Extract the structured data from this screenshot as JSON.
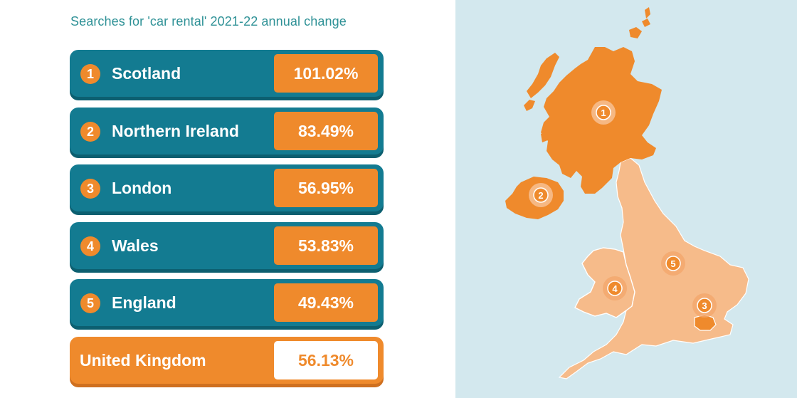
{
  "title": "Searches for 'car rental' 2021-22 annual change",
  "rows": [
    {
      "rank": "1",
      "name": "Scotland",
      "value": "101.02%"
    },
    {
      "rank": "2",
      "name": "Northern Ireland",
      "value": "83.49%"
    },
    {
      "rank": "3",
      "name": "London",
      "value": "56.95%"
    },
    {
      "rank": "4",
      "name": "Wales",
      "value": "53.83%"
    },
    {
      "rank": "5",
      "name": "England",
      "value": "49.43%"
    }
  ],
  "total": {
    "name": "United Kingdom",
    "value": "56.13%"
  },
  "map": {
    "markers": [
      "1",
      "2",
      "3",
      "4",
      "5"
    ]
  },
  "colors": {
    "teal": "#137b91",
    "orange": "#ef8a2c",
    "light_orange": "#f6bb8a",
    "map_background": "#d3e8ee",
    "title_teal": "#2e9196"
  }
}
